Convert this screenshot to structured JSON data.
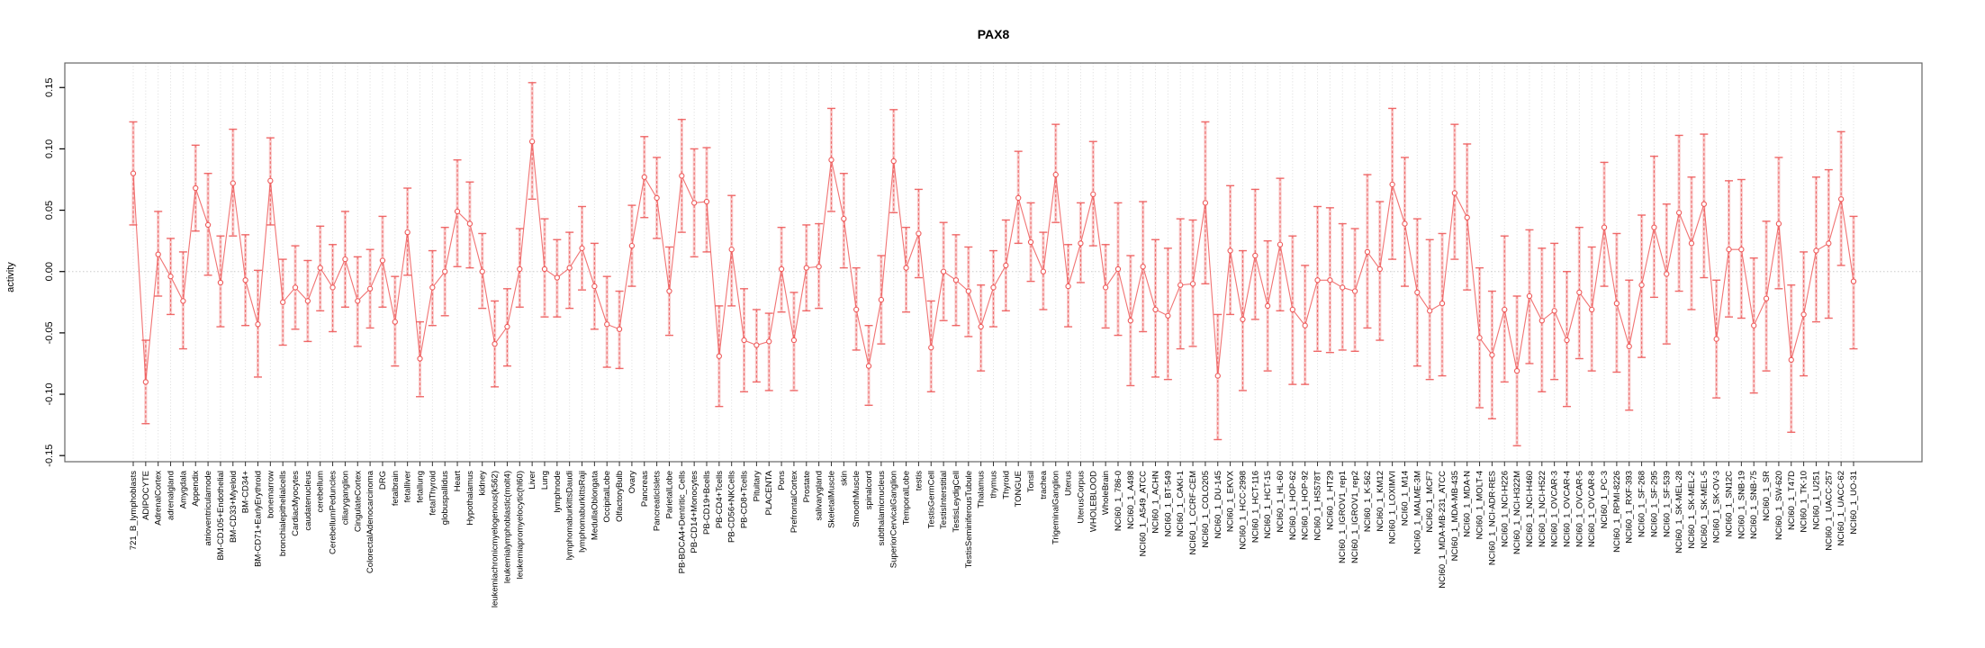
{
  "chart_data": {
    "type": "line",
    "title": "PAX8",
    "xlabel": "",
    "ylabel": "activity",
    "ylim": [
      -0.155,
      0.17
    ],
    "grid": "vertical-dotted-per-category, dotted-zero-line",
    "legend": "none",
    "marker": "open-circle-with-error-bars",
    "colors": {
      "series": "#ee5a5a",
      "band": "#f5a0a0",
      "grid": "#dcdcdc",
      "zero_line": "#cccccc",
      "frame": "#666666",
      "text": "#000000"
    },
    "ytick_values": [
      0.15,
      0.1,
      0.05,
      0.0,
      -0.05,
      -0.1,
      -0.15
    ],
    "ytick_labels": [
      "0.15",
      "0.10",
      "0.05",
      "0.00",
      "-0.05",
      "-0.10",
      "-0.15"
    ],
    "categories": [
      "721_B_lymphoblasts",
      "ADIPOCYTE",
      "AdrenalCortex",
      "adrenalgland",
      "Amygdala",
      "Appendix",
      "atrioventricularnode",
      "BM-CD105+Endothelial",
      "BM-CD33+Myeloid",
      "BM-CD34+",
      "BM-CD71+EarlyErythroid",
      "bonemarrow",
      "bronchialepithelialcells",
      "CardiacMyocytes",
      "caudatenucleus",
      "cerebellum",
      "CerebellumPeduncles",
      "ciliaryganglion",
      "CingulateCortex",
      "ColorectalAdenocarcinoma",
      "DRG",
      "fetalbrain",
      "fetalliver",
      "fetallung",
      "fetalThyroid",
      "globuspallidus",
      "Heart",
      "Hypothalamus",
      "kidney",
      "leukemiachronicmyelogenous(k562)",
      "leukemialymphoblastic(molt4)",
      "leukemiapromyelocytic(hl60)",
      "Liver",
      "Lung",
      "lymphnode",
      "lymphomaburkittsDaudi",
      "lymphomaburkittsRaji",
      "MedullaOblongata",
      "OccipitalLobe",
      "OlfactoryBulb",
      "Ovary",
      "Pancreas",
      "PancreaticIslets",
      "ParietalLobe",
      "PB-BDCA4+Dentritic_Cells",
      "PB-CD14+Monocytes",
      "PB-CD19+Bcells",
      "PB-CD4+Tcells",
      "PB-CD56+NKCells",
      "PB-CD8+Tcells",
      "Pituitary",
      "PLACENTA",
      "Pons",
      "PrefrontalCortex",
      "Prostate",
      "salivarygland",
      "SkeletalMuscle",
      "skin",
      "SmoothMuscle",
      "spinalcord",
      "subthalamicnucleus",
      "SuperiorCervicalGanglion",
      "TemporalLobe",
      "testis",
      "TestisGermCell",
      "TestisInterstitial",
      "TestisLeydigCell",
      "TestisSeminiferousTubule",
      "Thalamus",
      "thymus",
      "Thyroid",
      "TONGUE",
      "Tonsil",
      "trachea",
      "TrigeminalGanglion",
      "Uterus",
      "UterusCorpus",
      "WHOLEBLOOD",
      "WholeBrain",
      "NCI60_1_786-0",
      "NCI60_1_A498",
      "NCI60_1_A549_ATCC",
      "NCI60_1_ACHN",
      "NCI60_1_BT-549",
      "NCI60_1_CAKI-1",
      "NCI60_1_CCRF-CEM",
      "NCI60_1_COLO205",
      "NCI60_1_DU-145",
      "NCI60_1_EKVX",
      "NCI60_1_HCC-2998",
      "NCI60_1_HCT-116",
      "NCI60_1_HCT-15",
      "NCI60_1_HL-60",
      "NCI60_1_HOP-62",
      "NCI60_1_HOP-92",
      "NCI60_1_HS578T",
      "NCI60_1_HT29",
      "NCI60_1_IGROV1_rep1",
      "NCI60_1_IGROV1_rep2",
      "NCI60_1_K-562",
      "NCI60_1_KM12",
      "NCI60_1_LOXIMVI",
      "NCI60_1_M14",
      "NCI60_1_MALME-3M",
      "NCI60_1_MCF7",
      "NCI60_1_MDA-MB-231_ATCC",
      "NCI60_1_MDA-MB-435",
      "NCI60_1_MDA-N",
      "NCI60_1_MOLT-4",
      "NCI60_1_NCI-ADR-RES",
      "NCI60_1_NCI-H226",
      "NCI60_1_NCI-H322M",
      "NCI60_1_NCI-H460",
      "NCI60_1_NCI-H522",
      "NCI60_1_OVCAR-3",
      "NCI60_1_OVCAR-4",
      "NCI60_1_OVCAR-5",
      "NCI60_1_OVCAR-8",
      "NCI60_1_PC-3",
      "NCI60_1_RPMI-8226",
      "NCI60_1_RXF-393",
      "NCI60_1_SF-268",
      "NCI60_1_SF-295",
      "NCI60_1_SF-539",
      "NCI60_1_SK-MEL-28",
      "NCI60_1_SK-MEL-2",
      "NCI60_1_SK-MEL-5",
      "NCI60_1_SK-OV-3",
      "NCI60_1_SN12C",
      "NCI60_1_SNB-19",
      "NCI60_1_SNB-75",
      "NCI60_1_SR",
      "NCI60_1_SW-620",
      "NCI60_1_T47D",
      "NCI60_1_TK-10",
      "NCI60_1_U251",
      "NCI60_1_UACC-257",
      "NCI60_1_UACC-62",
      "NCI60_1_UO-31"
    ],
    "values": [
      0.08,
      -0.09,
      0.014,
      -0.004,
      -0.024,
      0.068,
      0.038,
      -0.009,
      0.072,
      -0.007,
      -0.043,
      0.074,
      -0.025,
      -0.013,
      -0.024,
      0.003,
      -0.013,
      0.01,
      -0.024,
      -0.014,
      0.009,
      -0.041,
      0.032,
      -0.071,
      -0.013,
      0.0,
      0.049,
      0.039,
      0.0,
      -0.059,
      -0.045,
      0.002,
      0.106,
      0.002,
      -0.005,
      0.003,
      0.019,
      -0.012,
      -0.043,
      -0.047,
      0.021,
      0.077,
      0.06,
      -0.016,
      0.078,
      0.056,
      0.057,
      -0.069,
      0.018,
      -0.056,
      -0.06,
      -0.057,
      0.002,
      -0.056,
      0.003,
      0.004,
      0.091,
      0.043,
      -0.031,
      -0.077,
      -0.023,
      0.09,
      0.003,
      0.031,
      -0.062,
      0.0,
      -0.007,
      -0.016,
      -0.045,
      -0.013,
      0.005,
      0.06,
      0.024,
      0.0,
      0.079,
      -0.012,
      0.023,
      0.063,
      -0.013,
      0.002,
      -0.04,
      0.004,
      -0.031,
      -0.036,
      -0.011,
      -0.01,
      0.056,
      -0.085,
      0.017,
      -0.039,
      0.013,
      -0.028,
      0.022,
      -0.031,
      -0.044,
      -0.007,
      -0.007,
      -0.013,
      -0.016,
      0.016,
      0.002,
      0.071,
      0.039,
      -0.017,
      -0.032,
      -0.026,
      0.064,
      0.044,
      -0.054,
      -0.068,
      -0.031,
      -0.081,
      -0.02,
      -0.04,
      -0.032,
      -0.056,
      -0.017,
      -0.031,
      0.036,
      -0.026,
      -0.061,
      -0.011,
      0.036,
      -0.002,
      0.048,
      0.023,
      0.055,
      -0.055,
      0.018,
      0.018,
      -0.044,
      -0.022,
      0.039,
      -0.072,
      -0.035,
      0.017,
      0.023,
      0.059,
      -0.008
    ],
    "err_lo": [
      0.038,
      -0.124,
      -0.02,
      -0.035,
      -0.063,
      0.033,
      -0.003,
      -0.045,
      0.029,
      -0.044,
      -0.086,
      0.038,
      -0.06,
      -0.047,
      -0.057,
      -0.032,
      -0.049,
      -0.029,
      -0.061,
      -0.046,
      -0.029,
      -0.077,
      -0.003,
      -0.102,
      -0.044,
      -0.036,
      0.004,
      0.003,
      -0.03,
      -0.094,
      -0.077,
      -0.029,
      0.059,
      -0.037,
      -0.037,
      -0.03,
      -0.015,
      -0.047,
      -0.078,
      -0.079,
      -0.012,
      0.044,
      0.027,
      -0.052,
      0.032,
      0.012,
      0.016,
      -0.11,
      -0.028,
      -0.098,
      -0.09,
      -0.097,
      -0.033,
      -0.097,
      -0.032,
      -0.03,
      0.049,
      0.003,
      -0.064,
      -0.109,
      -0.059,
      0.048,
      -0.033,
      -0.005,
      -0.098,
      -0.04,
      -0.044,
      -0.053,
      -0.081,
      -0.045,
      -0.032,
      0.023,
      -0.008,
      -0.031,
      0.04,
      -0.045,
      -0.009,
      0.021,
      -0.046,
      -0.052,
      -0.093,
      -0.049,
      -0.086,
      -0.088,
      -0.063,
      -0.061,
      -0.01,
      -0.137,
      -0.035,
      -0.097,
      -0.039,
      -0.081,
      -0.032,
      -0.092,
      -0.092,
      -0.065,
      -0.066,
      -0.064,
      -0.065,
      -0.046,
      -0.056,
      0.01,
      -0.012,
      -0.077,
      -0.088,
      -0.085,
      0.01,
      -0.015,
      -0.111,
      -0.12,
      -0.09,
      -0.142,
      -0.075,
      -0.098,
      -0.088,
      -0.11,
      -0.071,
      -0.081,
      -0.012,
      -0.082,
      -0.113,
      -0.07,
      -0.021,
      -0.059,
      -0.016,
      -0.031,
      -0.005,
      -0.103,
      -0.037,
      -0.038,
      -0.099,
      -0.081,
      -0.014,
      -0.131,
      -0.085,
      -0.041,
      -0.038,
      0.005,
      -0.063
    ],
    "err_hi": [
      0.122,
      -0.056,
      0.049,
      0.027,
      0.016,
      0.103,
      0.08,
      0.029,
      0.116,
      0.03,
      0.001,
      0.109,
      0.01,
      0.021,
      0.009,
      0.037,
      0.022,
      0.049,
      0.012,
      0.018,
      0.045,
      -0.004,
      0.068,
      -0.041,
      0.017,
      0.036,
      0.091,
      0.073,
      0.031,
      -0.024,
      -0.014,
      0.035,
      0.154,
      0.043,
      0.026,
      0.032,
      0.053,
      0.023,
      -0.004,
      -0.016,
      0.054,
      0.11,
      0.093,
      0.02,
      0.124,
      0.1,
      0.101,
      -0.028,
      0.062,
      -0.014,
      -0.031,
      -0.034,
      0.036,
      -0.017,
      0.038,
      0.039,
      0.133,
      0.08,
      0.003,
      -0.044,
      0.013,
      0.132,
      0.036,
      0.067,
      -0.024,
      0.04,
      0.03,
      0.02,
      -0.011,
      0.017,
      0.042,
      0.098,
      0.056,
      0.032,
      0.12,
      0.022,
      0.056,
      0.106,
      0.022,
      0.056,
      0.013,
      0.057,
      0.026,
      0.019,
      0.043,
      0.042,
      0.122,
      -0.035,
      0.07,
      0.017,
      0.067,
      0.025,
      0.076,
      0.029,
      0.005,
      0.053,
      0.052,
      0.039,
      0.035,
      0.079,
      0.057,
      0.133,
      0.093,
      0.043,
      0.026,
      0.031,
      0.12,
      0.104,
      0.003,
      -0.016,
      0.029,
      -0.02,
      0.034,
      0.019,
      0.023,
      0.0,
      0.036,
      0.02,
      0.089,
      0.031,
      -0.007,
      0.046,
      0.094,
      0.055,
      0.111,
      0.077,
      0.112,
      -0.007,
      0.074,
      0.075,
      0.011,
      0.041,
      0.093,
      -0.011,
      0.016,
      0.077,
      0.083,
      0.114,
      0.045
    ]
  }
}
